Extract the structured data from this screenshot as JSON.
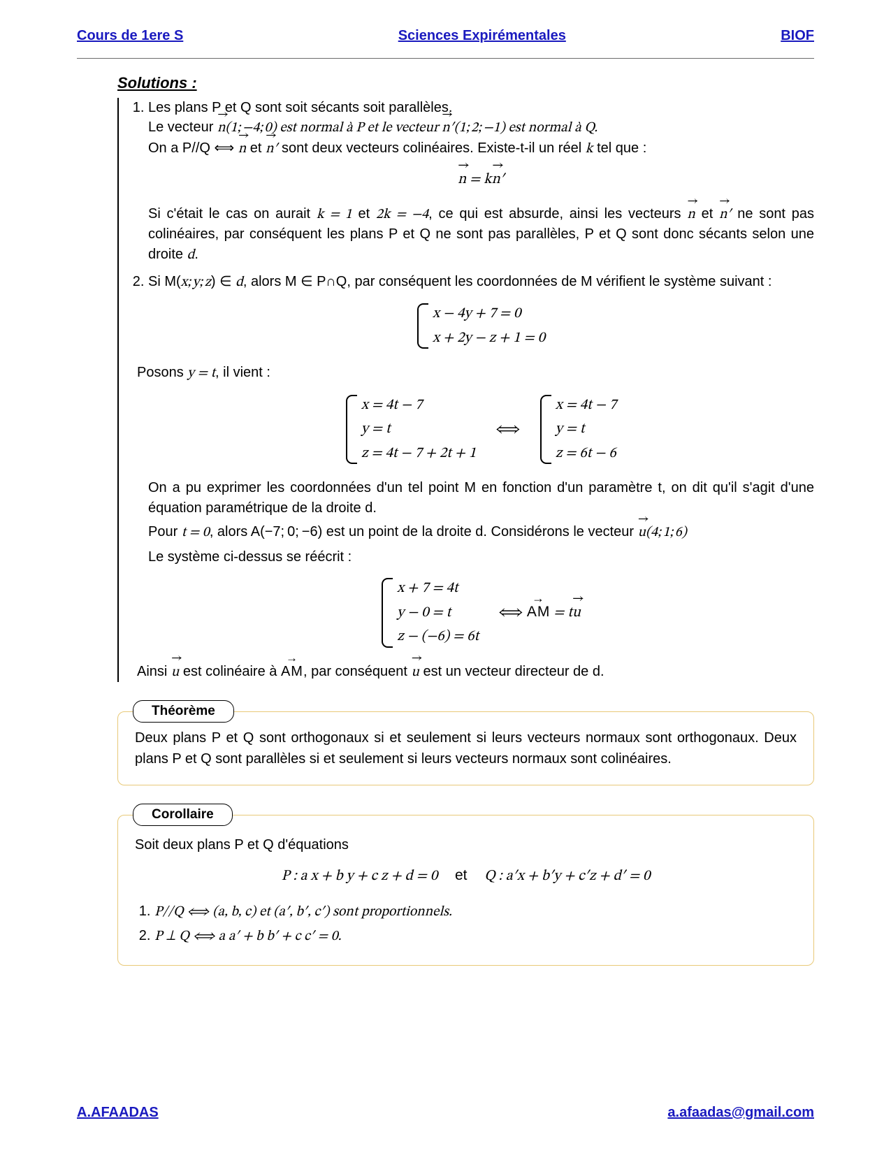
{
  "header": {
    "left": "Cours de 1ere S",
    "center": "Sciences Expirémentales",
    "right": "BIOF"
  },
  "footer": {
    "left": "A.AFAADAS",
    "right": "a.afaadas@gmail.com"
  },
  "solutions_label": "Solutions :",
  "item1": {
    "p1": "Les plans P et Q sont soit sécants soit parallèles.",
    "p2_a": "Le vecteur ",
    "p2_b": "(1; −4; 0) est normal à P et le vecteur ",
    "p2_c": "(1; 2; −1) est normal à Q.",
    "p3_a": "On a P//Q ⟺ ",
    "p3_b": " et ",
    "p3_c": " sont deux vecteurs colinéaires. Existe-t-il un réel ",
    "p3_d": " tel que :",
    "eq1_lhs": "n",
    "eq1_mid": " = k",
    "eq1_rhs": "n′",
    "p4_a": "Si c'était le cas on aurait ",
    "p4_k1": "k = 1",
    "p4_b": " et ",
    "p4_k2": "2k = −4",
    "p4_c": ", ce qui est absurde, ainsi les vecteurs ",
    "p4_d": " et ",
    "p4_e": " ne sont pas colinéaires, par conséquent les plans P et Q ne sont pas parallèles, P et Q sont donc sécants selon une droite ",
    "p4_f": "."
  },
  "item2": {
    "p1_a": "Si M(",
    "p1_xyz": "x; y; z",
    "p1_b": ") ∈ ",
    "p1_c": ", alors M ∈ P∩Q, par conséquent les coordonnées de M vérifient le système suivant :",
    "sys1": {
      "r1": "x − 4y + 7 = 0",
      "r2": "x + 2y − z + 1 = 0"
    },
    "p2_a": "Posons ",
    "p2_b": "y = t",
    "p2_c": ", il vient :",
    "sys2a": {
      "r1": "x = 4t − 7",
      "r2": "y = t",
      "r3": "z = 4t − 7 + 2t + 1"
    },
    "sys2b": {
      "r1": "x = 4t − 7",
      "r2": "y = t",
      "r3": "z = 6t − 6"
    },
    "p3": "On a pu exprimer les coordonnées d'un tel point M en fonction d'un paramètre t, on dit qu'il s'agit d'une équation paramétrique de la droite d.",
    "p4_a": "Pour ",
    "p4_t0": "t = 0",
    "p4_b": ", alors A(−7; 0; −6) est un point de la droite d. Considérons le vecteur ",
    "p4_u": "(4; 1; 6)",
    "p5": "Le système ci-dessus se réécrit :",
    "sys3": {
      "r1": "x + 7 = 4t",
      "r2": "y − 0 = t",
      "r3": "z − (−6) = 6t"
    },
    "sys3_res_a": "⟺ ",
    "sys3_res_b": " = t",
    "p6_a": "Ainsi ",
    "p6_b": " est colinéaire à ",
    "p6_c": ", par conséquent ",
    "p6_d": " est un vecteur directeur de d."
  },
  "theorem": {
    "label": "Théorème",
    "body": "Deux plans P et Q sont orthogonaux si et seulement si leurs vecteurs normaux sont orthogonaux. Deux plans P et Q sont parallèles si et seulement si leurs vecteurs normaux sont colinéaires."
  },
  "corollary": {
    "label": "Corollaire",
    "intro": "Soit deux plans P et Q d'équations",
    "eqP": "P : a x + b y + c z + d = 0",
    "et": "et",
    "eqQ": "Q : a′x + b′y + c′z + d′ = 0",
    "li1": "P//Q ⟺ (a, b, c) et (a′, b′, c′) sont proportionnels.",
    "li2": "P ⊥ Q ⟺ a a′ + b b′ + c c′ = 0."
  }
}
